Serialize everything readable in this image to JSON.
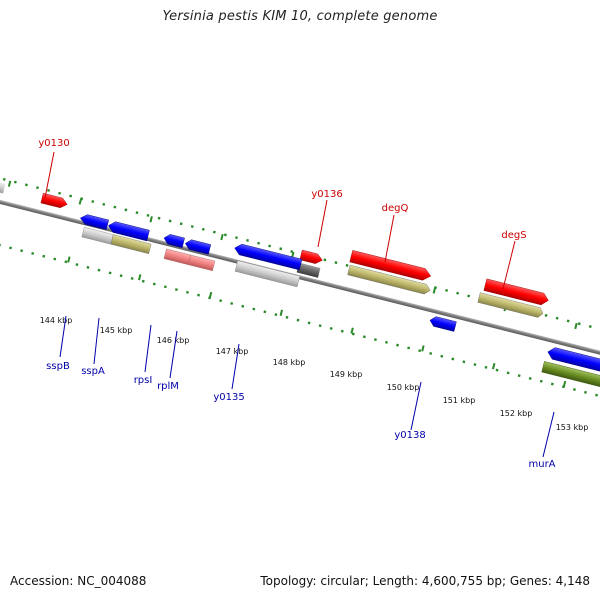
{
  "title": "Yersinia pestis KIM 10, complete genome",
  "footer": {
    "accession": "Accession: NC_004088",
    "summary": "Topology: circular; Length: 4,600,755 bp; Genes: 4,148"
  },
  "colors": {
    "forward_label": "#cc0000",
    "reverse_label": "#0000aa",
    "backbone": "#888888",
    "tick": "#2a8a2a"
  },
  "genome_kbp_ticks": [
    "144 kbp",
    "145 kbp",
    "146 kbp",
    "147 kbp",
    "148 kbp",
    "149 kbp",
    "150 kbp",
    "151 kbp",
    "152 kbp",
    "153 kbp"
  ],
  "forward_gene_labels": [
    "y0130",
    "y0136",
    "degQ",
    "degS"
  ],
  "reverse_gene_labels": [
    "sspB",
    "sspA",
    "rpsI",
    "rplM",
    "y0135",
    "y0138",
    "murA"
  ]
}
